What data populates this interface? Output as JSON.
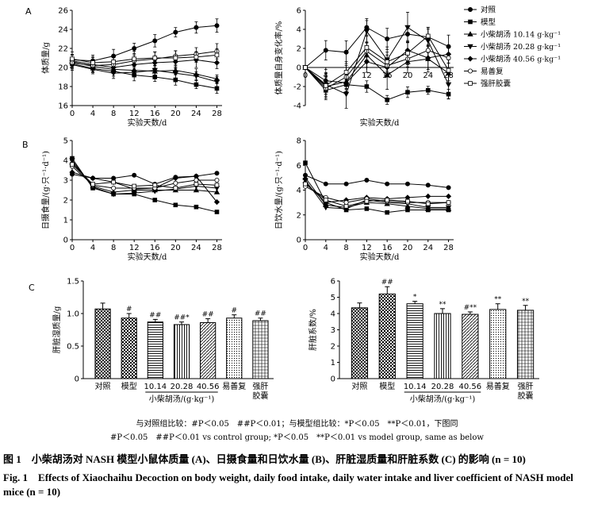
{
  "panel_labels": {
    "a": "A",
    "b": "B",
    "c": "C"
  },
  "legend": {
    "items": [
      "对照",
      "模型",
      "小柴胡汤 10.14 g·kg⁻¹",
      "小柴胡汤 20.28 g·kg⁻¹",
      "小柴胡汤 40.56 g·kg⁻¹",
      "易善复",
      "强肝胶囊"
    ],
    "markers": [
      "circle-filled",
      "square-filled",
      "triangle-up",
      "triangle-down",
      "diamond",
      "circle-open",
      "square-open"
    ]
  },
  "chart_data": [
    {
      "id": "A1",
      "type": "line",
      "ylabel": "体质量/g",
      "xlabel": "实验天数/d",
      "x": [
        0,
        4,
        8,
        12,
        16,
        20,
        24,
        28
      ],
      "xlim": [
        0,
        29
      ],
      "ylim": [
        16,
        26
      ],
      "xticks": [
        0,
        4,
        8,
        12,
        16,
        20,
        24,
        28
      ],
      "yticks": [
        16,
        18,
        20,
        22,
        24,
        26
      ],
      "series": [
        {
          "name": "对照",
          "values": [
            20.8,
            20.7,
            21.2,
            22.0,
            22.8,
            23.7,
            24.2,
            24.4
          ],
          "err": 0.7
        },
        {
          "name": "模型",
          "values": [
            20.4,
            19.9,
            19.6,
            19.2,
            19.0,
            18.7,
            18.2,
            17.8
          ],
          "err": 0.6
        },
        {
          "name": "小柴胡汤 10.14 g·kg⁻¹",
          "values": [
            20.6,
            20.1,
            19.8,
            19.7,
            19.6,
            19.7,
            19.3,
            18.8
          ],
          "err": 0.6
        },
        {
          "name": "小柴胡汤 20.28 g·kg⁻¹",
          "values": [
            20.3,
            19.8,
            19.4,
            19.5,
            19.7,
            19.4,
            19.1,
            18.5
          ],
          "err": 0.6
        },
        {
          "name": "小柴胡汤 40.56 g·kg⁻¹",
          "values": [
            20.7,
            20.3,
            20.0,
            20.3,
            20.5,
            20.6,
            20.8,
            20.5
          ],
          "err": 0.8
        },
        {
          "name": "易善复",
          "values": [
            20.5,
            20.2,
            20.3,
            20.7,
            20.9,
            21.2,
            21.4,
            21.7
          ],
          "err": 0.8
        },
        {
          "name": "强肝胶囊",
          "values": [
            20.9,
            20.5,
            20.6,
            20.9,
            21.0,
            21.0,
            21.1,
            21.3
          ],
          "err": 0.8
        }
      ]
    },
    {
      "id": "A2",
      "type": "line",
      "ylabel": "体质量自身变化率/%",
      "xlabel": "实验天数/d",
      "x": [
        0,
        4,
        8,
        12,
        16,
        20,
        24,
        28
      ],
      "xlim": [
        0,
        29
      ],
      "ylim": [
        -4,
        6
      ],
      "xticks": [
        0,
        4,
        8,
        12,
        16,
        20,
        24,
        28
      ],
      "yticks": [
        -4,
        -2,
        0,
        2,
        4,
        6
      ],
      "series": [
        {
          "name": "对照",
          "values": [
            0,
            1.8,
            1.6,
            4.2,
            3.0,
            3.5,
            3.2,
            2.2
          ],
          "err": 1.2
        },
        {
          "name": "模型",
          "values": [
            0,
            -2.4,
            -1.8,
            -2.0,
            -3.4,
            -2.6,
            -2.4,
            -2.8
          ],
          "err": 0.6
        },
        {
          "name": "小柴胡汤 10.14 g·kg⁻¹",
          "values": [
            0,
            -2.0,
            -1.5,
            1.3,
            -0.8,
            0.6,
            0.9,
            -0.6
          ],
          "err": 1.5
        },
        {
          "name": "小柴胡汤 20.28 g·kg⁻¹",
          "values": [
            0,
            -1.8,
            -2.8,
            3.8,
            0.8,
            4.2,
            2.8,
            -1.8
          ],
          "err": 1.6
        },
        {
          "name": "小柴胡汤 40.56 g·kg⁻¹",
          "values": [
            0,
            -1.4,
            -1.6,
            0.6,
            0.0,
            1.8,
            1.0,
            1.4
          ],
          "err": 1.2
        },
        {
          "name": "易善复",
          "values": [
            0,
            -2.2,
            -1.0,
            1.7,
            0.2,
            0.9,
            1.8,
            1.0
          ],
          "err": 1.2
        },
        {
          "name": "强肝胶囊",
          "values": [
            0,
            -1.9,
            -0.5,
            2.1,
            0.6,
            1.5,
            3.3,
            -0.3
          ],
          "err": 1.3
        }
      ]
    },
    {
      "id": "B1",
      "type": "line",
      "ylabel": "日摄食量/(g·只⁻¹·d⁻¹)",
      "xlabel": "实验天数/d",
      "x": [
        0,
        4,
        8,
        12,
        16,
        20,
        24,
        28
      ],
      "xlim": [
        0,
        29
      ],
      "ylim": [
        0,
        5
      ],
      "xticks": [
        0,
        4,
        8,
        12,
        16,
        20,
        24,
        28
      ],
      "yticks": [
        0,
        1,
        2,
        3,
        4,
        5
      ],
      "series": [
        {
          "name": "对照",
          "values": [
            3.3,
            3.1,
            3.1,
            3.25,
            2.8,
            3.15,
            3.2,
            3.35
          ]
        },
        {
          "name": "模型",
          "values": [
            4.1,
            2.6,
            2.3,
            2.3,
            2.0,
            1.75,
            1.65,
            1.4
          ]
        },
        {
          "name": "小柴胡汤 10.14 g·kg⁻¹",
          "values": [
            3.9,
            2.7,
            2.4,
            2.5,
            2.5,
            2.5,
            2.5,
            2.4
          ]
        },
        {
          "name": "小柴胡汤 20.28 g·kg⁻¹",
          "values": [
            4.0,
            2.65,
            2.3,
            2.35,
            2.45,
            2.55,
            2.7,
            2.6
          ]
        },
        {
          "name": "小柴胡汤 40.56 g·kg⁻¹",
          "values": [
            3.4,
            3.1,
            2.9,
            2.55,
            2.6,
            3.1,
            3.2,
            1.9
          ]
        },
        {
          "name": "易善复",
          "values": [
            3.7,
            2.75,
            2.6,
            2.6,
            2.6,
            2.85,
            3.0,
            3.0
          ]
        },
        {
          "name": "强肝胶囊",
          "values": [
            3.8,
            2.8,
            2.9,
            2.7,
            2.75,
            2.6,
            2.8,
            2.75
          ]
        }
      ]
    },
    {
      "id": "B2",
      "type": "line",
      "ylabel": "日饮水量/(g·只⁻¹·d⁻¹)",
      "xlabel": "实验天数/d",
      "x": [
        0,
        4,
        8,
        12,
        16,
        20,
        24,
        28
      ],
      "xlim": [
        0,
        29
      ],
      "ylim": [
        0,
        8
      ],
      "xticks": [
        0,
        4,
        8,
        12,
        16,
        20,
        24,
        28
      ],
      "yticks": [
        0,
        2,
        4,
        6,
        8
      ],
      "series": [
        {
          "name": "对照",
          "values": [
            5.2,
            4.5,
            4.5,
            4.8,
            4.5,
            4.5,
            4.4,
            4.2
          ]
        },
        {
          "name": "模型",
          "values": [
            6.2,
            3.0,
            2.4,
            2.5,
            2.2,
            2.4,
            2.4,
            2.4
          ]
        },
        {
          "name": "小柴胡汤 10.14 g·kg⁻¹",
          "values": [
            5.0,
            2.8,
            2.6,
            3.0,
            2.9,
            2.7,
            2.5,
            2.5
          ]
        },
        {
          "name": "小柴胡汤 20.28 g·kg⁻¹",
          "values": [
            4.8,
            2.6,
            2.5,
            3.2,
            3.0,
            2.9,
            2.6,
            2.6
          ]
        },
        {
          "name": "小柴胡汤 40.56 g·kg⁻¹",
          "values": [
            4.6,
            3.0,
            3.2,
            3.4,
            3.3,
            3.4,
            3.5,
            3.5
          ]
        },
        {
          "name": "易善复",
          "values": [
            4.3,
            3.4,
            3.0,
            3.3,
            3.1,
            3.0,
            3.0,
            3.0
          ]
        },
        {
          "name": "强肝胶囊",
          "values": [
            4.5,
            3.2,
            2.7,
            3.1,
            3.2,
            3.1,
            2.9,
            3.0
          ]
        }
      ]
    },
    {
      "id": "C1",
      "type": "bar",
      "ylabel": "肝脏湿质量/g",
      "categories": [
        "对照",
        "模型",
        "10.14",
        "20.28",
        "40.56",
        "易善复",
        "强肝胶囊"
      ],
      "values": [
        1.07,
        0.93,
        0.87,
        0.83,
        0.86,
        0.93,
        0.89
      ],
      "errors": [
        0.09,
        0.07,
        0.04,
        0.04,
        0.06,
        0.05,
        0.04
      ],
      "significance": [
        "",
        "#",
        "##",
        "##*",
        "##",
        "#",
        "##"
      ],
      "patterns": [
        "crosshatch",
        "checker",
        "hlines",
        "vlines",
        "diag",
        "dots",
        "grid"
      ],
      "group_label": "小柴胡汤/(g·kg⁻¹)",
      "ylim": [
        0,
        1.5
      ],
      "yticks": [
        0,
        0.5,
        1.0,
        1.5
      ],
      "ytick_labels": [
        "0",
        "0.5",
        "1.0",
        "1.5"
      ]
    },
    {
      "id": "C2",
      "type": "bar",
      "ylabel": "肝脏系数/%",
      "categories": [
        "对照",
        "模型",
        "10.14",
        "20.28",
        "40.56",
        "易善复",
        "强肝胶囊"
      ],
      "values": [
        4.35,
        5.2,
        4.6,
        4.0,
        3.95,
        4.25,
        4.2
      ],
      "errors": [
        0.3,
        0.45,
        0.15,
        0.3,
        0.15,
        0.35,
        0.3
      ],
      "significance": [
        "",
        "##",
        "*",
        "**",
        "#**",
        "**",
        "**"
      ],
      "patterns": [
        "crosshatch",
        "checker",
        "hlines",
        "vlines",
        "diag",
        "dots",
        "grid"
      ],
      "group_label": "小柴胡汤/(g·kg⁻¹)",
      "ylim": [
        0,
        6
      ],
      "yticks": [
        0,
        1,
        2,
        3,
        4,
        5,
        6
      ],
      "ytick_labels": [
        "0",
        "1",
        "2",
        "3",
        "4",
        "5",
        "6"
      ]
    }
  ],
  "notes": {
    "line1": "与对照组比较：#P＜0.05　##P＜0.01；与模型组比较：*P＜0.05　**P＜0.01，下图同",
    "line2": "#P＜0.05　##P＜0.01 vs control group; *P＜0.05　**P＜0.01 vs model group, same as below"
  },
  "caption": {
    "cn": "图 1　小柴胡汤对 NASH 模型小鼠体质量 (A)、日摄食量和日饮水量 (B)、肝脏湿质量和肝脏系数 (C) 的影响 (n = 10)",
    "en": "Fig. 1　Effects of Xiaochaihu Decoction on body weight, daily food intake, daily water intake and liver coefficient of NASH model mice (n = 10)"
  }
}
